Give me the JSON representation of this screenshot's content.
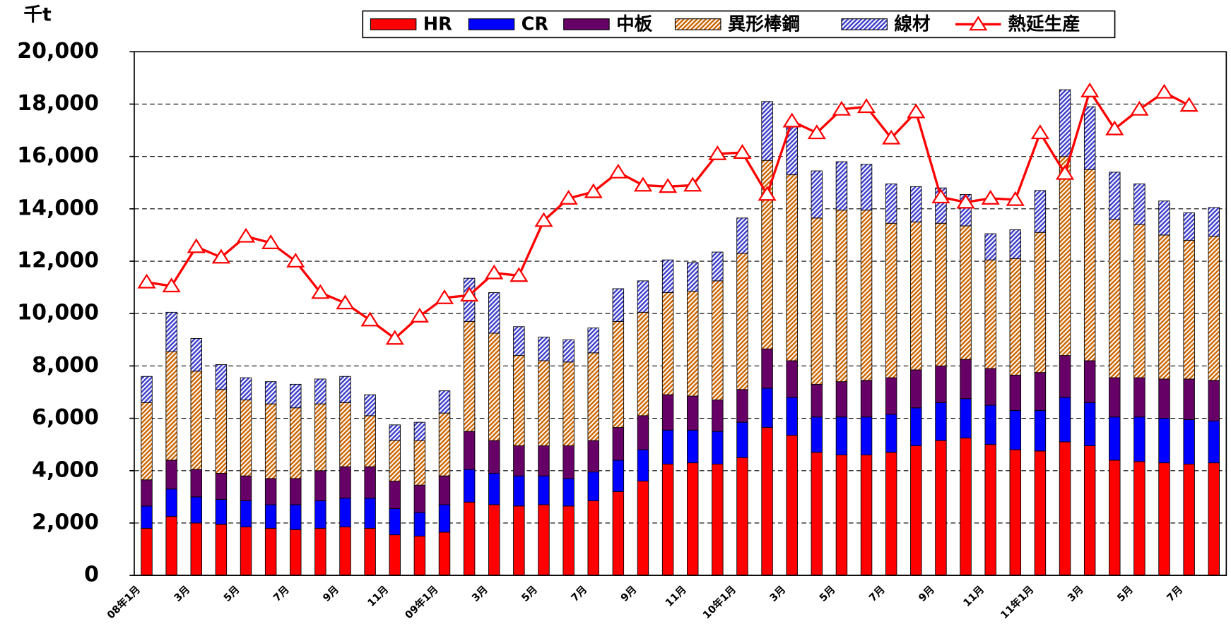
{
  "chart_data": {
    "type": "bar",
    "stacked": true,
    "y_label": "千t",
    "categories": [
      "08年1月",
      null,
      "3月",
      null,
      "5月",
      null,
      "7月",
      null,
      "9月",
      null,
      "11月",
      null,
      "09年1月",
      null,
      "3月",
      null,
      "5月",
      null,
      "7月",
      null,
      "9月",
      null,
      "11月",
      null,
      "10年1月",
      null,
      "3月",
      null,
      "5月",
      null,
      "7月",
      null,
      "9月",
      null,
      "11月",
      null,
      "11年1月",
      null,
      "3月",
      null,
      "5月",
      null,
      "7月",
      null
    ],
    "ylim": [
      0,
      20000
    ],
    "yticks": [
      {
        "value": 0,
        "label": "0"
      },
      {
        "value": 2000,
        "label": "2,000"
      },
      {
        "value": 4000,
        "label": "4,000"
      },
      {
        "value": 6000,
        "label": "6,000"
      },
      {
        "value": 8000,
        "label": "8,000"
      },
      {
        "value": 10000,
        "label": "10,000"
      },
      {
        "value": 12000,
        "label": "12,000"
      },
      {
        "value": 14000,
        "label": "14,000"
      },
      {
        "value": 16000,
        "label": "16,000"
      },
      {
        "value": 18000,
        "label": "18,000"
      },
      {
        "value": 20000,
        "label": "20,000"
      }
    ],
    "grid": true,
    "legend": "top",
    "series": [
      {
        "name": "HR",
        "type": "bar",
        "color": "#ff0000",
        "hatch": false,
        "values": [
          1800,
          2250,
          2000,
          1950,
          1850,
          1800,
          1750,
          1800,
          1850,
          1800,
          1550,
          1500,
          1650,
          2800,
          2700,
          2650,
          2700,
          2650,
          2850,
          3200,
          3600,
          4250,
          4300,
          4250,
          4500,
          5650,
          5350,
          4700,
          4600,
          4600,
          4700,
          4950,
          5150,
          5250,
          5000,
          4800,
          4750,
          5100,
          4950,
          4400,
          4350,
          4300,
          4250,
          4300
        ]
      },
      {
        "name": "CR",
        "type": "bar",
        "color": "#0000ff",
        "hatch": false,
        "values": [
          850,
          1050,
          1000,
          950,
          1000,
          900,
          950,
          1050,
          1100,
          1150,
          1000,
          900,
          1050,
          1250,
          1200,
          1150,
          1100,
          1050,
          1100,
          1200,
          1200,
          1300,
          1250,
          1250,
          1350,
          1500,
          1450,
          1350,
          1450,
          1450,
          1450,
          1450,
          1450,
          1500,
          1500,
          1500,
          1550,
          1700,
          1650,
          1650,
          1700,
          1700,
          1700,
          1600
        ]
      },
      {
        "name": "中板",
        "type": "bar",
        "color": "#660066",
        "hatch": false,
        "values": [
          1000,
          1100,
          1050,
          1000,
          950,
          1000,
          1000,
          1150,
          1200,
          1200,
          1050,
          1050,
          1100,
          1450,
          1250,
          1150,
          1150,
          1250,
          1200,
          1250,
          1300,
          1350,
          1300,
          1200,
          1250,
          1500,
          1400,
          1250,
          1350,
          1400,
          1400,
          1450,
          1400,
          1500,
          1400,
          1350,
          1450,
          1600,
          1600,
          1500,
          1500,
          1500,
          1550,
          1550
        ]
      },
      {
        "name": "異形棒鋼",
        "type": "bar",
        "color": "#cc6600",
        "hatch": true,
        "values": [
          2950,
          4150,
          3750,
          3200,
          2900,
          2850,
          2700,
          2550,
          2450,
          1950,
          1550,
          1700,
          2400,
          4200,
          4100,
          3450,
          3250,
          3200,
          3350,
          4050,
          3950,
          3900,
          4000,
          4550,
          5200,
          7200,
          7100,
          6350,
          6550,
          6500,
          5900,
          5650,
          5450,
          5100,
          4150,
          4450,
          5350,
          7600,
          7300,
          6050,
          5850,
          5500,
          5300,
          5500
        ]
      },
      {
        "name": "線材",
        "type": "bar",
        "color": "#4040cc",
        "hatch": true,
        "values": [
          1000,
          1500,
          1250,
          950,
          850,
          850,
          900,
          950,
          1000,
          800,
          600,
          700,
          850,
          1650,
          1550,
          1100,
          900,
          850,
          950,
          1250,
          1200,
          1250,
          1100,
          1100,
          1350,
          2250,
          2000,
          1800,
          1850,
          1750,
          1500,
          1350,
          1350,
          1200,
          1000,
          1100,
          1600,
          2550,
          2400,
          1800,
          1550,
          1300,
          1050,
          1100
        ]
      },
      {
        "name": "熱延生産",
        "type": "line",
        "color": "#ff0000",
        "marker": "triangle",
        "values": [
          11200,
          11050,
          12550,
          12150,
          12950,
          12700,
          12000,
          10800,
          10400,
          9750,
          9050,
          9900,
          10600,
          10700,
          11550,
          11450,
          13550,
          14400,
          14650,
          15400,
          14900,
          14850,
          14900,
          16100,
          16150,
          14550,
          17350,
          16900,
          17800,
          17900,
          16700,
          17700,
          14450,
          14250,
          14400,
          14350,
          16900,
          15350,
          18500,
          17050,
          17800,
          18450,
          17950,
          null
        ]
      }
    ]
  }
}
